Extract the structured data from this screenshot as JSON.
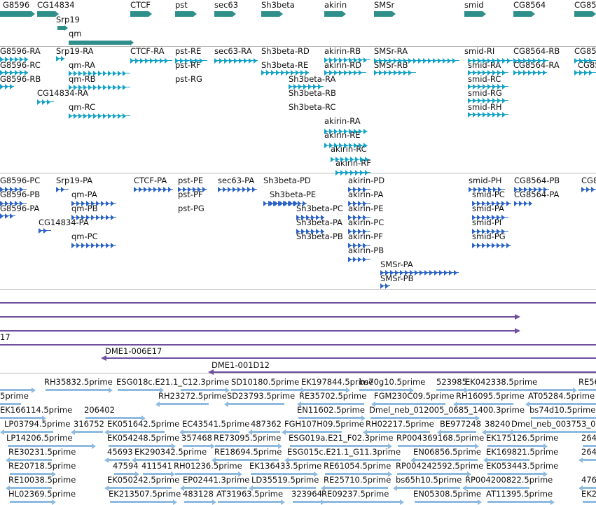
{
  "colors": {
    "gene": "#2f8f8b",
    "transcript": "#12a3c8",
    "protein": "#2b64c8",
    "clone": "#6e4fa0",
    "est": "#8fbbe0",
    "separator": "#b8b8b8"
  },
  "gene_track": {
    "labels": [
      "G8596",
      "CG14834",
      "Srp19",
      "qm",
      "CTCF",
      "pst",
      "sec63",
      "Sh3beta",
      "akirin",
      "SMSr",
      "smid",
      "CG8564",
      "CG85"
    ]
  },
  "transcript_track": {
    "labels": [
      "G8596-RA",
      "G8596-RC",
      "G8596-RB",
      "CG14834-RA",
      "Srp19-RA",
      "qm-RA",
      "qm-RB",
      "qm-RC",
      "CTCF-RA",
      "pst-RE",
      "pst-RF",
      "pst-RG",
      "sec63-RA",
      "Sh3beta-RD",
      "Sh3beta-RE",
      "Sh3beta-RA",
      "Sh3beta-RB",
      "Sh3beta-RC",
      "akirin-RB",
      "akirin-RD",
      "akirin-RA",
      "akirin-RE",
      "akirin-RC",
      "akirin-RF",
      "SMSr-RA",
      "SMSr-RB",
      "smid-RI",
      "smid-RA",
      "smid-RC",
      "smid-RG",
      "smid-RH",
      "CG8564-RB",
      "CG8564-RA",
      "CG85",
      "CG85"
    ]
  },
  "protein_track": {
    "labels": [
      "G8596-PC",
      "G8596-PB",
      "G8596-PA",
      "CG14834-PA",
      "Srp19-PA",
      "qm-PA",
      "qm-PB",
      "qm-PC",
      "CTCF-PA",
      "pst-PE",
      "pst-PF",
      "pst-PG",
      "sec63-PA",
      "Sh3beta-PD",
      "Sh3beta-PE",
      "Sh3beta-PC",
      "Sh3beta-PA",
      "Sh3beta-PB",
      "akirin-PD",
      "akirin-PA",
      "akirin-PE",
      "akirin-PC",
      "akirin-PF",
      "akirin-PB",
      "SMSr-PA",
      "SMSr-PB",
      "smid-PH",
      "smid-PC",
      "smid-PA",
      "smid-PI",
      "smid-PG",
      "CG8564-PB",
      "CG8564-PA",
      "CG8"
    ]
  },
  "clone_track": {
    "labels": [
      "17",
      "DME1-006E17",
      "DME1-001D12"
    ]
  },
  "est_track": {
    "labels": [
      "RH35832.5prime",
      "ESG018c.E21.1_C12.3prime",
      "SD10180.5prime",
      "EK197844.5prime",
      "bs70g10.5prime",
      "523985",
      "EK042338.5prime",
      "RE56",
      "5prime",
      "RH23272.5prime",
      "SD23793.5prime",
      "RE35702.5prime",
      "FGM230C09.5prime",
      "RH16095.5prime",
      "AT05284.5prime",
      "EK166114.5prime",
      "206402",
      "EN11602.5prime",
      "Dmel_neb_012005_0685_1400.3prime",
      "bs74d10.5prime",
      "LP03794.5prime",
      "316752",
      "EK051642.5prime",
      "EC43541.5prime",
      "487362",
      "FGH107H09.5prime",
      "RH02217.5prime",
      "BE977248",
      "38240",
      "Dmel_neb_003753_0",
      "LP14206.5prime",
      "EK054248.5prime",
      "357468",
      "RE73095.5prime",
      "ESG019a.E21_F02.3prime",
      "RP004369168.5prime",
      "EK175126.5prime",
      "264",
      "RE30231.5prime",
      "45693",
      "EK290342.5prime",
      "RE18694.5prime",
      "ESG015c.E21.1_G11.3prime",
      "EN06856.5prime",
      "EK169821.5prime",
      "264",
      "RE20718.5prime",
      "47594",
      "411541",
      "RH01236.5prime",
      "EK136433.5prime",
      "RE61054.5prime",
      "RP004242592.5prime",
      "EK053443.5prime",
      "RE10038.5prime",
      "EK050242.5prime",
      "EP02441.3prime",
      "LD35519.5prime",
      "RE25710.5prime",
      "bs65h10.5prime",
      "RP004200822.5prime",
      "476",
      "HL02369.5prime",
      "EK213507.5prime",
      "483128",
      "AT31963.5prime",
      "323964",
      "RE09237.5prime",
      "EN05308.5prime",
      "AT11395.5prime",
      "EK2"
    ]
  }
}
